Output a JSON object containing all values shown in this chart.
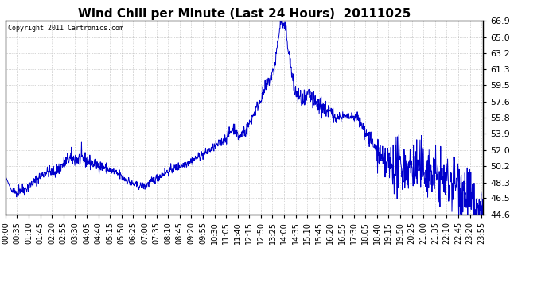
{
  "title": "Wind Chill per Minute (Last 24 Hours)  20111025",
  "copyright": "Copyright 2011 Cartronics.com",
  "line_color": "#0000cc",
  "bg_color": "#ffffff",
  "grid_color": "#b0b0b0",
  "ylim": [
    44.6,
    66.9
  ],
  "yticks": [
    44.6,
    46.5,
    48.3,
    50.2,
    52.0,
    53.9,
    55.8,
    57.6,
    59.5,
    61.3,
    63.2,
    65.0,
    66.9
  ],
  "tick_fontsize": 7,
  "title_fontsize": 11,
  "line_width": 0.7,
  "figsize": [
    6.9,
    3.75
  ],
  "dpi": 100
}
